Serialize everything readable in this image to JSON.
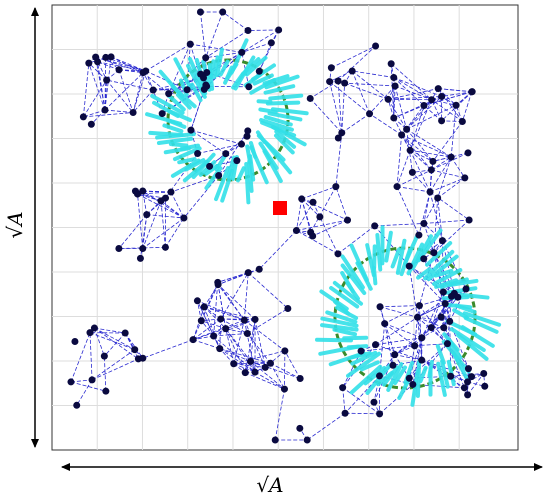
{
  "axes": {
    "x_label": "√A",
    "y_label": "√A"
  }
}
